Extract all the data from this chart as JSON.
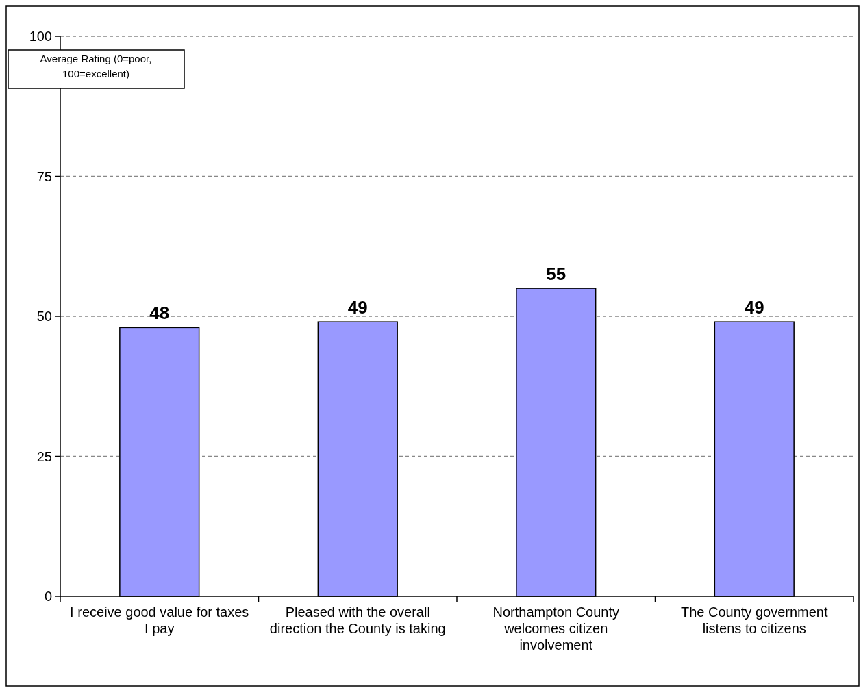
{
  "chart_data": {
    "type": "bar",
    "ylabel": "Average Rating (0=poor, 100=excellent)",
    "categories": [
      "I receive good value for taxes I pay",
      "Pleased with the overall direction the County is taking",
      "Northampton County welcomes citizen involvement",
      "The County government listens to citizens"
    ],
    "values": [
      48,
      49,
      55,
      49
    ],
    "color": "#9999ff",
    "ylim": [
      0,
      100
    ],
    "yticks": [
      0,
      25,
      50,
      75,
      100
    ],
    "grid": "y",
    "data_labels": true
  }
}
